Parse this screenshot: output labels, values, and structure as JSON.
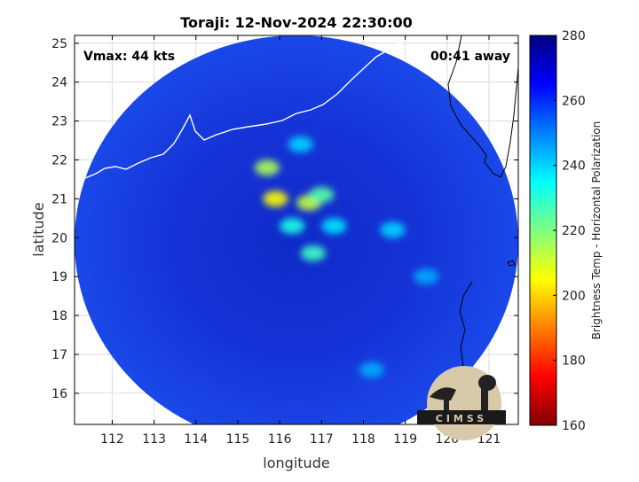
{
  "chart_data": {
    "type": "heatmap",
    "title": "Toraji: 12-Nov-2024 22:30:00",
    "annotations": {
      "vmax": "Vmax: 44 kts",
      "time_away": "00:41 away"
    },
    "xlabel": "longitude",
    "ylabel": "latitude",
    "xlim": [
      111.1,
      121.7
    ],
    "ylim": [
      15.2,
      25.2
    ],
    "xticks": [
      112,
      113,
      114,
      115,
      116,
      117,
      118,
      119,
      120,
      121
    ],
    "yticks": [
      16,
      17,
      18,
      19,
      20,
      21,
      22,
      23,
      24,
      25
    ],
    "colorbar": {
      "label": "Brightness Temp - Horizontal Polarization",
      "range": [
        160,
        280
      ],
      "ticks": [
        160,
        180,
        200,
        220,
        240,
        260,
        280
      ],
      "colormap": "jet"
    },
    "swath": {
      "center_lon": 116.4,
      "center_lat": 19.9,
      "radius_deg": 5.3
    },
    "grid": true,
    "features": [
      {
        "lon": 115.7,
        "lat": 21.8,
        "tb": 215
      },
      {
        "lon": 115.9,
        "lat": 21.0,
        "tb": 205
      },
      {
        "lon": 116.7,
        "lat": 20.9,
        "tb": 212
      },
      {
        "lon": 117.0,
        "lat": 21.1,
        "tb": 225
      },
      {
        "lon": 116.3,
        "lat": 20.3,
        "tb": 232
      },
      {
        "lon": 116.8,
        "lat": 19.6,
        "tb": 228
      },
      {
        "lon": 117.3,
        "lat": 20.3,
        "tb": 238
      },
      {
        "lon": 118.7,
        "lat": 20.2,
        "tb": 240
      },
      {
        "lon": 119.5,
        "lat": 19.0,
        "tb": 245
      },
      {
        "lon": 118.2,
        "lat": 16.6,
        "tb": 245
      },
      {
        "lon": 116.5,
        "lat": 22.4,
        "tb": 240
      }
    ]
  },
  "logo": {
    "text": "CIMSS"
  }
}
